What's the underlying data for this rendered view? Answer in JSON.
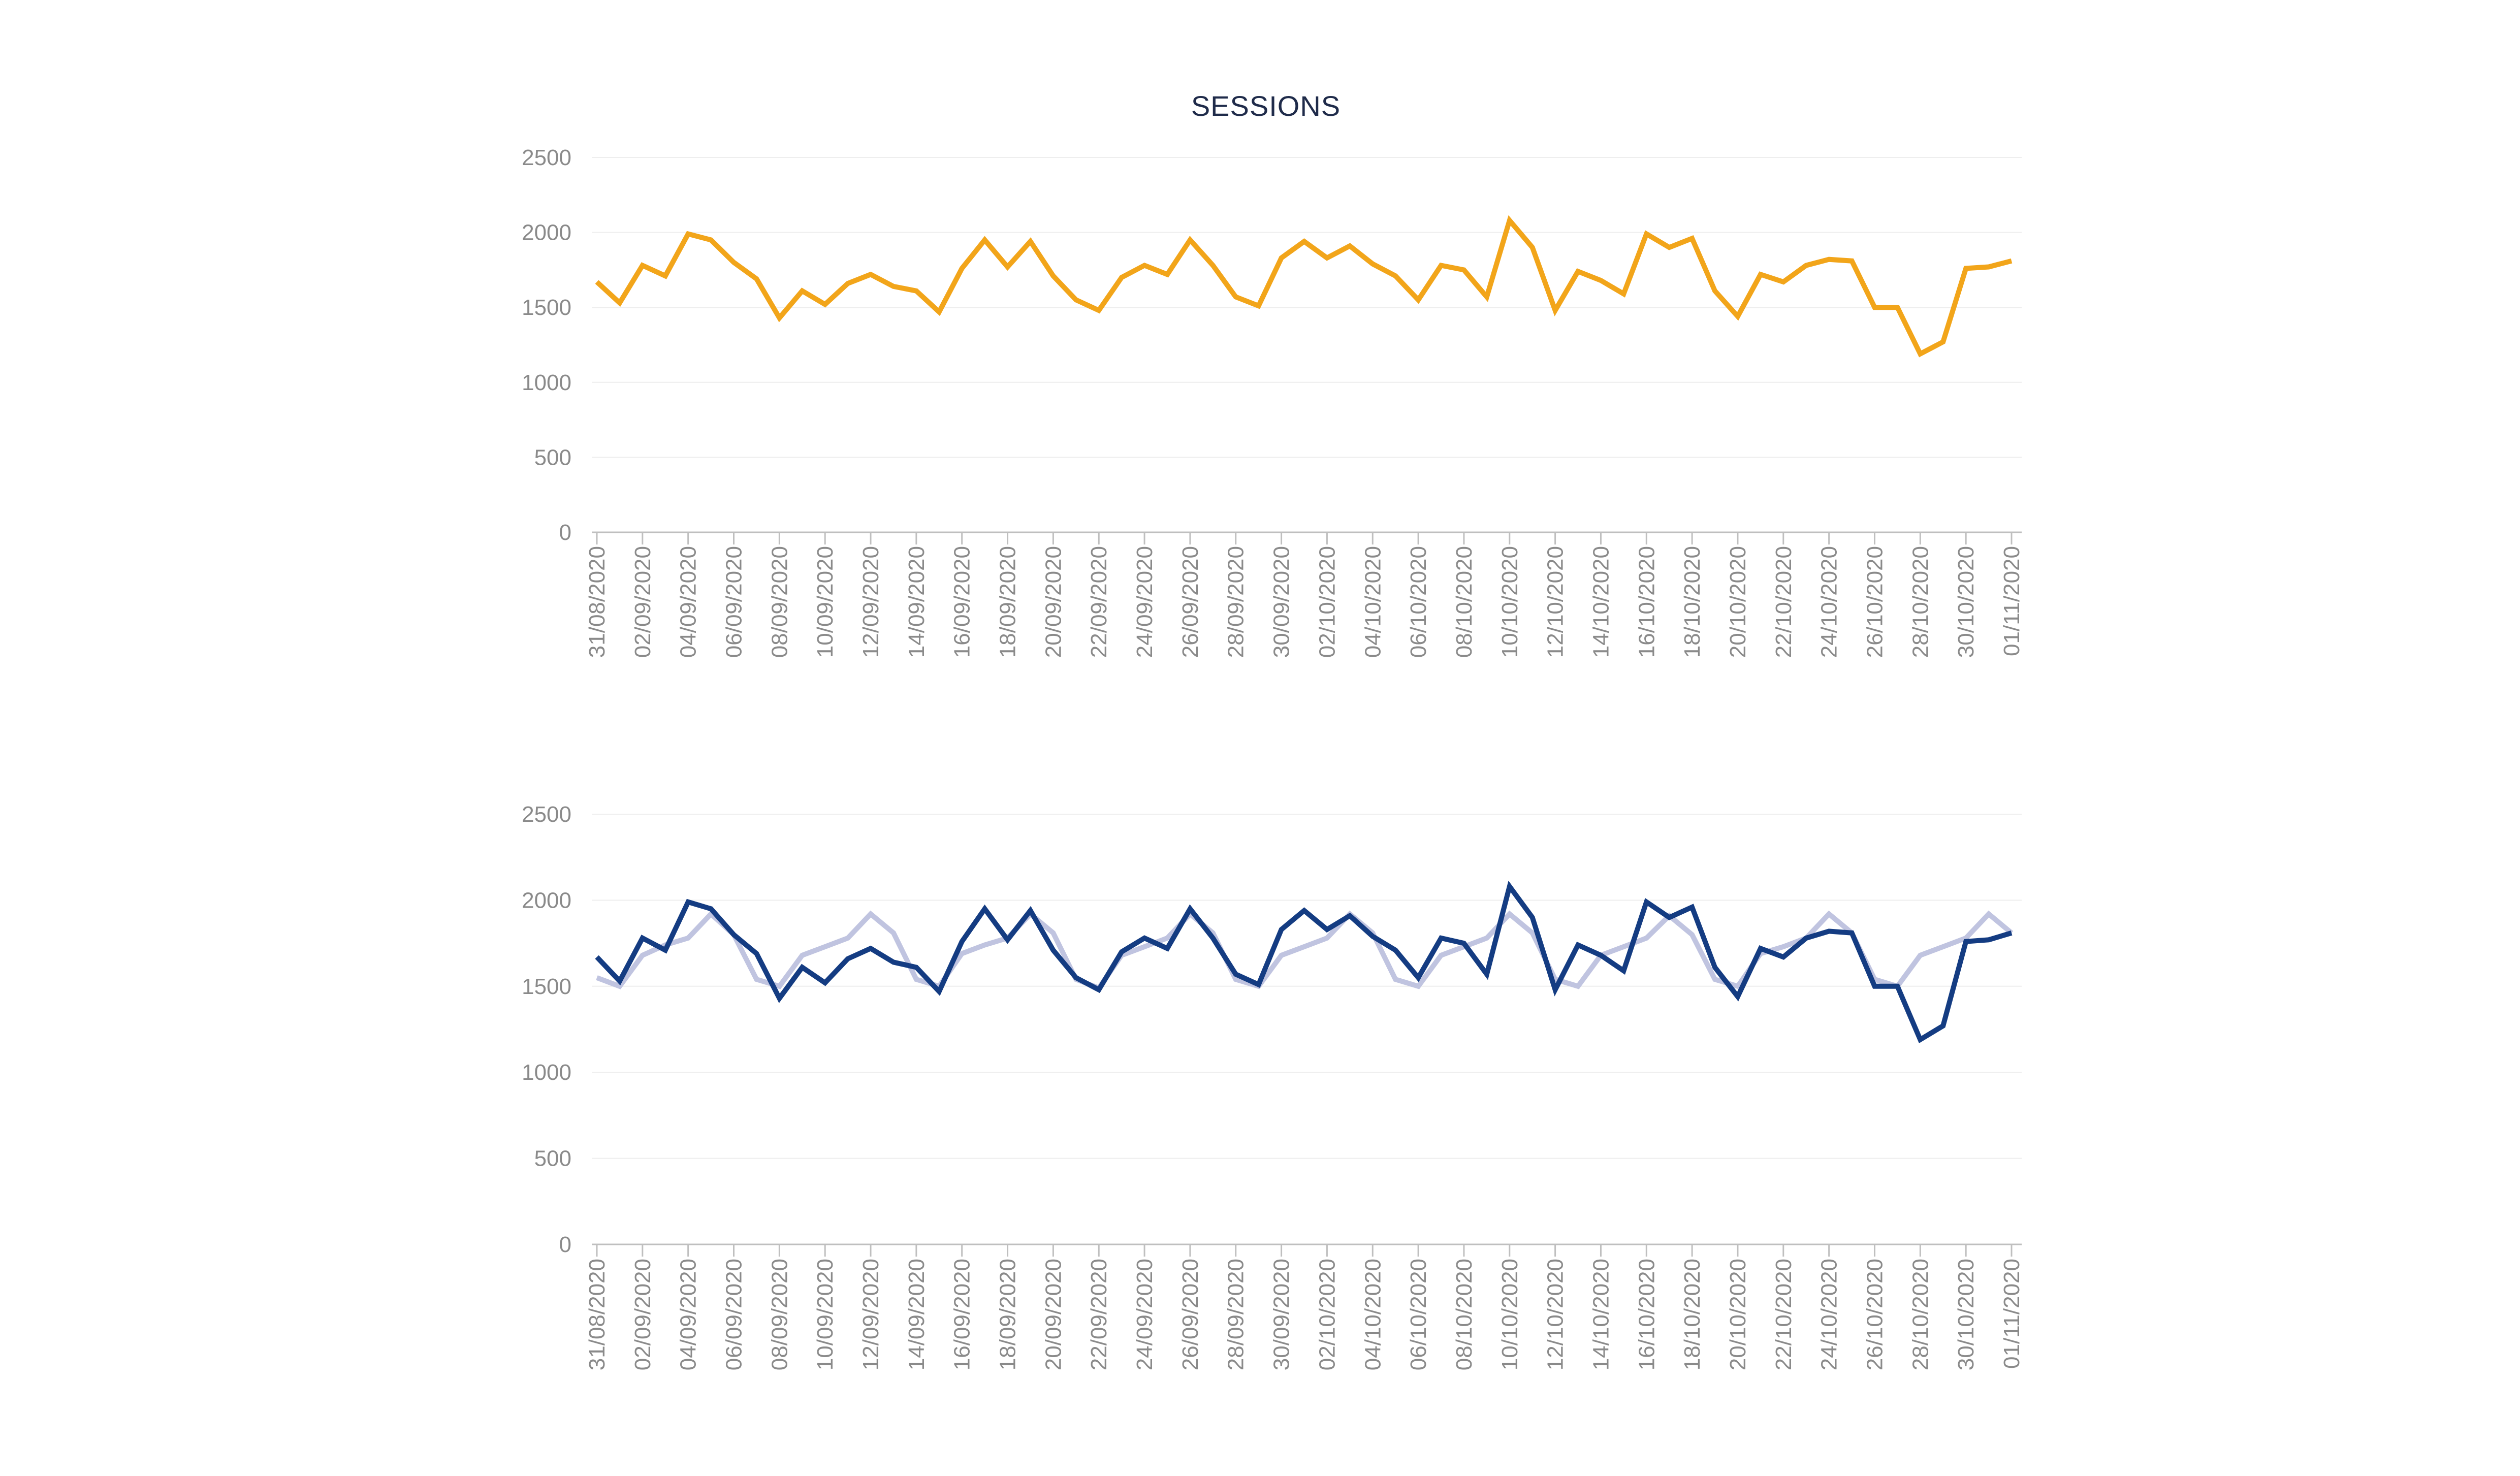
{
  "chart_data": [
    {
      "type": "line",
      "title": "SESSIONS",
      "xlabel": "",
      "ylabel": "",
      "ylim": [
        0,
        2500
      ],
      "yticks": [
        "0",
        "500",
        "1000",
        "1500",
        "2000",
        "2500"
      ],
      "grid": true,
      "legend": "none",
      "x": [
        "31/08/2020",
        "01/09/2020",
        "02/09/2020",
        "03/09/2020",
        "04/09/2020",
        "05/09/2020",
        "06/09/2020",
        "07/09/2020",
        "08/09/2020",
        "09/09/2020",
        "10/09/2020",
        "11/09/2020",
        "12/09/2020",
        "13/09/2020",
        "14/09/2020",
        "15/09/2020",
        "16/09/2020",
        "17/09/2020",
        "18/09/2020",
        "19/09/2020",
        "20/09/2020",
        "21/09/2020",
        "22/09/2020",
        "23/09/2020",
        "24/09/2020",
        "25/09/2020",
        "26/09/2020",
        "27/09/2020",
        "28/09/2020",
        "29/09/2020",
        "30/09/2020",
        "01/10/2020",
        "02/10/2020",
        "03/10/2020",
        "04/10/2020",
        "05/10/2020",
        "06/10/2020",
        "07/10/2020",
        "08/10/2020",
        "09/10/2020",
        "10/10/2020",
        "11/10/2020",
        "12/10/2020",
        "13/10/2020",
        "14/10/2020",
        "15/10/2020",
        "16/10/2020",
        "17/10/2020",
        "18/10/2020",
        "19/10/2020",
        "20/10/2020",
        "21/10/2020",
        "22/10/2020",
        "23/10/2020",
        "24/10/2020",
        "25/10/2020",
        "26/10/2020",
        "27/10/2020",
        "28/10/2020",
        "29/10/2020",
        "30/10/2020",
        "31/10/2020",
        "01/11/2020"
      ],
      "x_tick_labels": [
        "31/08/2020",
        "02/09/2020",
        "04/09/2020",
        "06/09/2020",
        "08/09/2020",
        "10/09/2020",
        "12/09/2020",
        "14/09/2020",
        "16/09/2020",
        "18/09/2020",
        "20/09/2020",
        "22/09/2020",
        "24/09/2020",
        "26/09/2020",
        "28/09/2020",
        "30/09/2020",
        "02/10/2020",
        "04/10/2020",
        "06/10/2020",
        "08/10/2020",
        "10/10/2020",
        "12/10/2020",
        "14/10/2020",
        "16/10/2020",
        "18/10/2020",
        "20/10/2020",
        "22/10/2020",
        "24/10/2020",
        "26/10/2020",
        "28/10/2020",
        "30/10/2020",
        "01/11/2020"
      ],
      "series": [
        {
          "color": "#f2a51a",
          "values": [
            1670,
            1530,
            1780,
            1710,
            1990,
            1950,
            1800,
            1690,
            1430,
            1610,
            1520,
            1660,
            1720,
            1640,
            1610,
            1470,
            1760,
            1950,
            1770,
            1940,
            1710,
            1550,
            1480,
            1700,
            1780,
            1720,
            1950,
            1780,
            1570,
            1510,
            1830,
            1940,
            1830,
            1910,
            1790,
            1710,
            1550,
            1780,
            1750,
            1570,
            2080,
            1900,
            1480,
            1740,
            1680,
            1590,
            1990,
            1900,
            1960,
            1610,
            1440,
            1720,
            1670,
            1780,
            1820,
            1810,
            1500,
            1500,
            1190,
            1270,
            1760,
            1770,
            1810
          ]
        }
      ]
    },
    {
      "type": "line",
      "title": "",
      "xlabel": "",
      "ylabel": "",
      "ylim": [
        0,
        2500
      ],
      "yticks": [
        "0",
        "500",
        "1000",
        "1500",
        "2000",
        "2500"
      ],
      "grid": true,
      "legend": "none",
      "x": [
        "31/08/2020",
        "01/09/2020",
        "02/09/2020",
        "03/09/2020",
        "04/09/2020",
        "05/09/2020",
        "06/09/2020",
        "07/09/2020",
        "08/09/2020",
        "09/09/2020",
        "10/09/2020",
        "11/09/2020",
        "12/09/2020",
        "13/09/2020",
        "14/09/2020",
        "15/09/2020",
        "16/09/2020",
        "17/09/2020",
        "18/09/2020",
        "19/09/2020",
        "20/09/2020",
        "21/09/2020",
        "22/09/2020",
        "23/09/2020",
        "24/09/2020",
        "25/09/2020",
        "26/09/2020",
        "27/09/2020",
        "28/09/2020",
        "29/09/2020",
        "30/09/2020",
        "01/10/2020",
        "02/10/2020",
        "03/10/2020",
        "04/10/2020",
        "05/10/2020",
        "06/10/2020",
        "07/10/2020",
        "08/10/2020",
        "09/10/2020",
        "10/10/2020",
        "11/10/2020",
        "12/10/2020",
        "13/10/2020",
        "14/10/2020",
        "15/10/2020",
        "16/10/2020",
        "17/10/2020",
        "18/10/2020",
        "19/10/2020",
        "20/10/2020",
        "21/10/2020",
        "22/10/2020",
        "23/10/2020",
        "24/10/2020",
        "25/10/2020",
        "26/10/2020",
        "27/10/2020",
        "28/10/2020",
        "29/10/2020",
        "30/10/2020",
        "31/10/2020",
        "01/11/2020"
      ],
      "x_tick_labels": [
        "31/08/2020",
        "02/09/2020",
        "04/09/2020",
        "06/09/2020",
        "08/09/2020",
        "10/09/2020",
        "12/09/2020",
        "14/09/2020",
        "16/09/2020",
        "18/09/2020",
        "20/09/2020",
        "22/09/2020",
        "24/09/2020",
        "26/09/2020",
        "28/09/2020",
        "30/09/2020",
        "02/10/2020",
        "04/10/2020",
        "06/10/2020",
        "08/10/2020",
        "10/10/2020",
        "12/10/2020",
        "14/10/2020",
        "16/10/2020",
        "18/10/2020",
        "20/10/2020",
        "22/10/2020",
        "24/10/2020",
        "26/10/2020",
        "28/10/2020",
        "30/10/2020",
        "01/11/2020"
      ],
      "series": [
        {
          "color": "#c0c4e0",
          "values": [
            1550,
            1500,
            1680,
            1740,
            1780,
            1920,
            1800,
            1540,
            1500,
            1680,
            1730,
            1780,
            1920,
            1810,
            1540,
            1500,
            1690,
            1740,
            1780,
            1920,
            1810,
            1540,
            1490,
            1680,
            1730,
            1780,
            1920,
            1810,
            1540,
            1500,
            1680,
            1730,
            1780,
            1920,
            1810,
            1540,
            1500,
            1680,
            1730,
            1780,
            1920,
            1810,
            1540,
            1500,
            1680,
            1730,
            1780,
            1910,
            1800,
            1540,
            1500,
            1690,
            1730,
            1780,
            1920,
            1810,
            1540,
            1500,
            1680,
            1730,
            1780,
            1920,
            1810
          ]
        },
        {
          "color": "#143c82",
          "values": [
            1670,
            1530,
            1780,
            1710,
            1990,
            1950,
            1800,
            1690,
            1430,
            1610,
            1520,
            1660,
            1720,
            1640,
            1610,
            1470,
            1760,
            1950,
            1770,
            1940,
            1710,
            1550,
            1480,
            1700,
            1780,
            1720,
            1950,
            1780,
            1570,
            1510,
            1830,
            1940,
            1830,
            1910,
            1790,
            1710,
            1550,
            1780,
            1750,
            1570,
            2080,
            1900,
            1480,
            1740,
            1680,
            1590,
            1990,
            1900,
            1960,
            1610,
            1440,
            1720,
            1670,
            1780,
            1820,
            1810,
            1500,
            1500,
            1190,
            1270,
            1760,
            1770,
            1810
          ]
        }
      ]
    }
  ]
}
